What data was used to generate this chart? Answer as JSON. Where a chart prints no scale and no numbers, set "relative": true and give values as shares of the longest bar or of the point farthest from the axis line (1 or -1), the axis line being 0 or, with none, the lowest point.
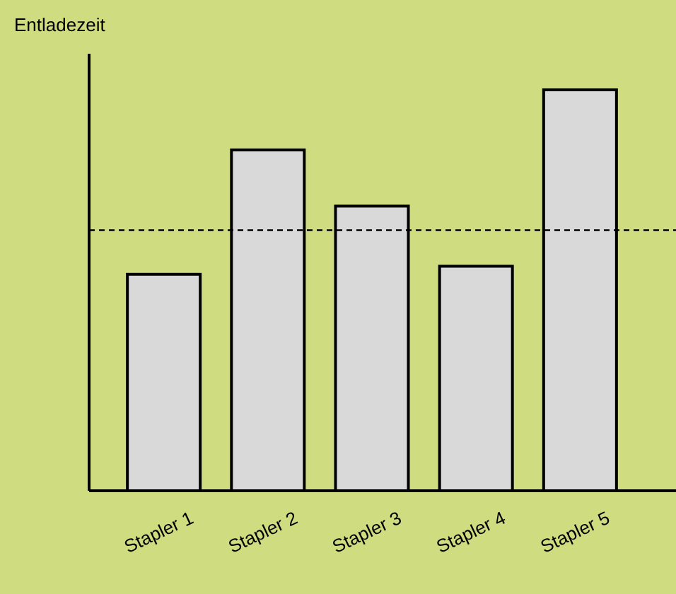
{
  "chart_data": {
    "type": "bar",
    "ylabel": "Entladezeit",
    "relative": true,
    "categories": [
      "Stapler 1",
      "Stapler 2",
      "Stapler 3",
      "Stapler 4",
      "Stapler 5"
    ],
    "values": [
      0.54,
      0.85,
      0.71,
      0.56,
      1
    ],
    "color": "#d9d9d9",
    "ref_lines": [
      {
        "axis": "y",
        "value": 0.65,
        "color": "#000000",
        "line_style": "dashed"
      }
    ]
  }
}
